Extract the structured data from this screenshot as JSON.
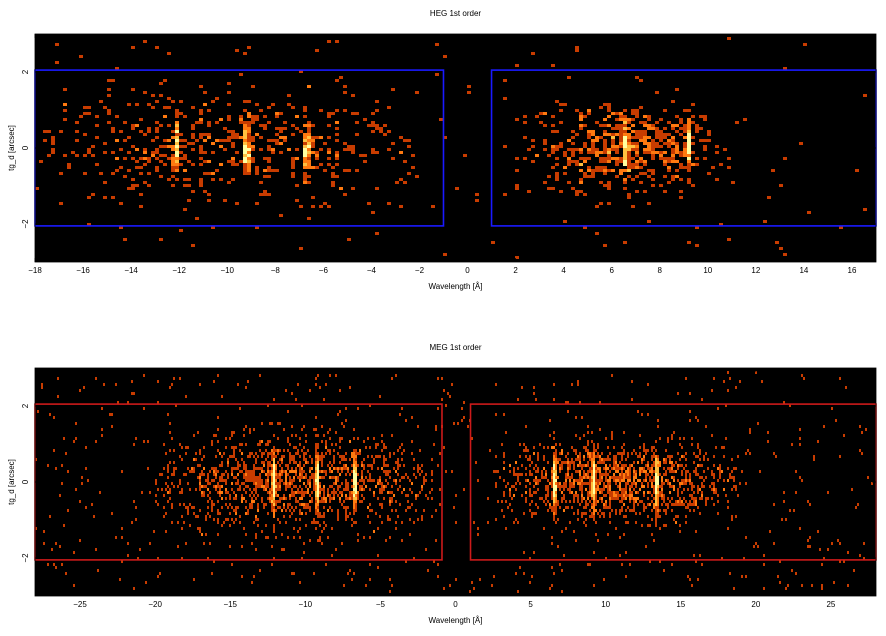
{
  "chart_data": [
    {
      "type": "heatmap",
      "title": "HEG 1st order",
      "xlabel": "Wavelength [Å]",
      "ylabel": "tg_d [arcsec]",
      "xlim": [
        -18,
        17
      ],
      "ylim": [
        -3,
        3
      ],
      "xticks": [
        -18,
        -16,
        -14,
        -12,
        -10,
        -8,
        -6,
        -4,
        -2,
        0,
        2,
        4,
        6,
        8,
        10,
        12,
        14,
        16
      ],
      "yticks": [
        -2,
        0,
        2
      ],
      "background_color": "#000000",
      "colormap": [
        "#6b1400",
        "#c83c00",
        "#ff7a10",
        "#ffc040",
        "#ffffa0"
      ],
      "extraction_regions": [
        {
          "x": [
            -18,
            -1.0
          ],
          "y": [
            -2.05,
            2.05
          ],
          "color": "#1a1aff"
        },
        {
          "x": [
            1.0,
            17
          ],
          "y": [
            -2.05,
            2.05
          ],
          "color": "#1a1aff"
        }
      ],
      "emission_clusters": [
        {
          "x_range": [
            -17.5,
            -2.5
          ],
          "y_sigma": 0.7,
          "weight": "medium"
        },
        {
          "x_range": [
            3.0,
            10.2
          ],
          "y_sigma": 0.55,
          "weight": "medium"
        }
      ],
      "bright_lines": [
        -12.1,
        -9.2,
        -6.7,
        6.6,
        9.2
      ]
    },
    {
      "type": "heatmap",
      "title": "MEG 1st order",
      "xlabel": "Wavelength [Å]",
      "ylabel": "tg_d [arcsec]",
      "xlim": [
        -28,
        28
      ],
      "ylim": [
        -3,
        3
      ],
      "xticks": [
        -25,
        -20,
        -15,
        -10,
        -5,
        0,
        5,
        10,
        15,
        20,
        25
      ],
      "yticks": [
        -2,
        0,
        2
      ],
      "background_color": "#000000",
      "colormap": [
        "#6b1400",
        "#c83c00",
        "#ff7a10",
        "#ffc040",
        "#ffffa0"
      ],
      "extraction_regions": [
        {
          "x": [
            -28,
            -0.9
          ],
          "y": [
            -2.05,
            2.05
          ],
          "color": "#cc1a1a"
        },
        {
          "x": [
            1.0,
            28
          ],
          "y": [
            -2.05,
            2.05
          ],
          "color": "#cc1a1a"
        }
      ],
      "emission_clusters": [
        {
          "x_range": [
            -19,
            -2
          ],
          "y_sigma": 0.6,
          "weight": "strong"
        },
        {
          "x_range": [
            3.5,
            18
          ],
          "y_sigma": 0.5,
          "weight": "strong"
        }
      ],
      "bright_lines": [
        -12.1,
        -9.2,
        -6.7,
        6.6,
        9.2,
        13.4
      ]
    }
  ]
}
